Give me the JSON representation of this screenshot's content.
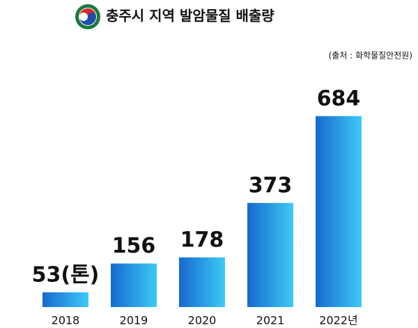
{
  "chart_data": {
    "type": "bar",
    "title": "충주시 지역 발암물질 배출량",
    "source": "(출처 : 화학물질안전원)",
    "categories": [
      "2018",
      "2019",
      "2020",
      "2021",
      "2022년"
    ],
    "values": [
      53,
      156,
      178,
      373,
      684
    ],
    "value_labels": [
      "53(톤)",
      "156",
      "178",
      "373",
      "684"
    ],
    "color": "#1e88e0",
    "ylim": [
      0,
      700
    ]
  }
}
